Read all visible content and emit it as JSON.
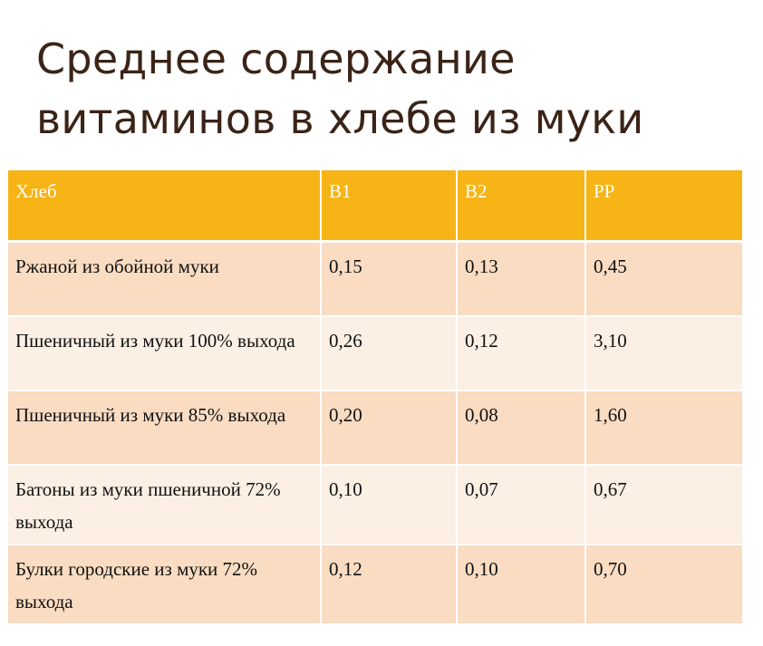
{
  "title": {
    "line1": "Среднее содержание",
    "line2": "витаминов в хлебе из муки"
  },
  "table": {
    "headers": [
      "Хлеб",
      "В1",
      "В2",
      "РР"
    ],
    "rows": [
      {
        "name": "Ржаной из обойной муки",
        "b1": "0,15",
        "b2": "0,13",
        "pp": "0,45"
      },
      {
        "name": "Пшеничный из муки 100% выхода",
        "b1": "0,26",
        "b2": "0,12",
        "pp": "3,10"
      },
      {
        "name": "Пшеничный из муки 85% выхода",
        "b1": "0,20",
        "b2": "0,08",
        "pp": "1,60"
      },
      {
        "name": "Батоны из муки пшеничной 72% выхода",
        "b1": "0,10",
        "b2": "0,07",
        "pp": "0,67"
      },
      {
        "name": "Булки городские из муки 72% выхода",
        "b1": "0,12",
        "b2": "0,10",
        "pp": "0,70"
      }
    ]
  },
  "colors": {
    "header": "#f6b416",
    "row_dark": "#f9dcc2",
    "row_light": "#fcefe4",
    "title_text": "#3b2417"
  }
}
